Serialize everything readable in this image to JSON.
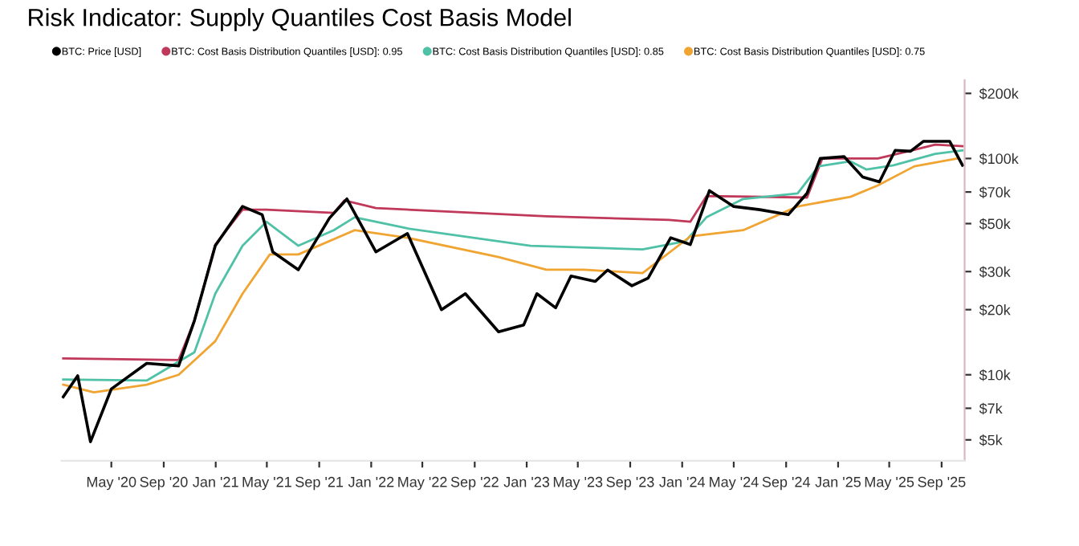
{
  "chart_data": {
    "type": "line",
    "title": "Risk Indicator: Supply Quantiles Cost Basis Model",
    "log": true,
    "legend": "top left",
    "grid": false,
    "marker": "none",
    "line_style": "solid",
    "xlim": [
      "2020-01-05",
      "2025-10-25"
    ],
    "xticks": [
      {
        "value": "2020-05-01",
        "label": "May '20"
      },
      {
        "value": "2020-09-01",
        "label": "Sep '20"
      },
      {
        "value": "2021-01-01",
        "label": "Jan '21"
      },
      {
        "value": "2021-05-01",
        "label": "May '21"
      },
      {
        "value": "2021-09-01",
        "label": "Sep '21"
      },
      {
        "value": "2022-01-01",
        "label": "Jan '22"
      },
      {
        "value": "2022-05-01",
        "label": "May '22"
      },
      {
        "value": "2022-09-01",
        "label": "Sep '22"
      },
      {
        "value": "2023-01-01",
        "label": "Jan '23"
      },
      {
        "value": "2023-05-01",
        "label": "May '23"
      },
      {
        "value": "2023-09-01",
        "label": "Sep '23"
      },
      {
        "value": "2024-01-01",
        "label": "Jan '24"
      },
      {
        "value": "2024-05-01",
        "label": "May '24"
      },
      {
        "value": "2024-09-01",
        "label": "Sep '24"
      },
      {
        "value": "2025-01-01",
        "label": "Jan '25"
      },
      {
        "value": "2025-05-01",
        "label": "May '25"
      },
      {
        "value": "2025-09-01",
        "label": "Sep '25"
      }
    ],
    "ylim": [
      4000,
      230000
    ],
    "yticks": [
      {
        "value": 5000,
        "label": "$5k"
      },
      {
        "value": 7000,
        "label": "$7k"
      },
      {
        "value": 10000,
        "label": "$10k"
      },
      {
        "value": 20000,
        "label": "$20k"
      },
      {
        "value": 30000,
        "label": "$30k"
      },
      {
        "value": 50000,
        "label": "$50k"
      },
      {
        "value": 70000,
        "label": "$70k"
      },
      {
        "value": 100000,
        "label": "$100k"
      },
      {
        "value": 200000,
        "label": "$200k"
      }
    ],
    "series": [
      {
        "name": "BTC: Cost Basis Distribution Quantiles [USD]: 0.95",
        "color": "#c0395a",
        "x": [
          "2020-01-09",
          "2020-10-06",
          "2020-11-12",
          "2020-12-31",
          "2021-03-05",
          "2021-04-30",
          "2021-10-05",
          "2021-10-30",
          "2022-01-12",
          "2023-02-16",
          "2023-12-01",
          "2024-01-20",
          "2024-02-27",
          "2024-10-20",
          "2024-11-25",
          "2025-04-04",
          "2025-06-15",
          "2025-08-17",
          "2025-10-20"
        ],
        "values": [
          11900,
          11700,
          17800,
          40000,
          58000,
          58000,
          56000,
          64000,
          59000,
          54000,
          52000,
          51000,
          67000,
          66000,
          100000,
          100000,
          108000,
          116000,
          114000
        ]
      },
      {
        "name": "BTC: Cost Basis Distribution Quantiles [USD]: 0.85",
        "color": "#4fc1a6",
        "x": [
          "2020-01-09",
          "2020-07-23",
          "2020-11-12",
          "2020-12-31",
          "2021-03-05",
          "2021-04-30",
          "2021-07-14",
          "2021-10-05",
          "2021-11-23",
          "2022-03-27",
          "2023-01-10",
          "2023-09-30",
          "2024-01-09",
          "2024-02-27",
          "2024-05-23",
          "2024-09-28",
          "2024-11-16",
          "2025-01-30",
          "2025-03-08",
          "2025-05-11",
          "2025-08-17",
          "2025-10-20"
        ],
        "values": [
          9500,
          9400,
          12700,
          23700,
          39500,
          51000,
          39500,
          46600,
          53500,
          47500,
          39500,
          38000,
          41500,
          53500,
          65000,
          69000,
          92000,
          97000,
          89000,
          93000,
          105000,
          109000
        ]
      },
      {
        "name": "BTC: Cost Basis Distribution Quantiles [USD]: 0.75",
        "color": "#f0a431",
        "x": [
          "2020-01-09",
          "2020-03-21",
          "2020-07-23",
          "2020-10-06",
          "2020-12-31",
          "2021-03-05",
          "2021-05-08",
          "2021-07-14",
          "2021-11-23",
          "2022-03-27",
          "2022-10-27",
          "2023-02-16",
          "2023-05-14",
          "2023-09-30",
          "2024-01-20",
          "2024-05-23",
          "2024-09-28",
          "2025-01-30",
          "2025-04-04",
          "2025-06-29",
          "2025-10-08"
        ],
        "values": [
          9000,
          8300,
          9000,
          10000,
          14300,
          23700,
          36000,
          36000,
          46600,
          43000,
          35000,
          30600,
          30600,
          29500,
          43600,
          46600,
          60000,
          66500,
          75000,
          92000,
          100000
        ]
      },
      {
        "name": "BTC: Price [USD]",
        "color": "#000000",
        "x": [
          "2020-01-09",
          "2020-02-12",
          "2020-03-13",
          "2020-05-01",
          "2020-07-23",
          "2020-10-06",
          "2020-11-12",
          "2020-12-31",
          "2021-03-05",
          "2021-04-20",
          "2021-05-15",
          "2021-07-14",
          "2021-09-25",
          "2021-11-05",
          "2022-01-12",
          "2022-03-27",
          "2022-06-15",
          "2022-08-10",
          "2022-10-27",
          "2022-12-25",
          "2023-01-25",
          "2023-03-10",
          "2023-04-15",
          "2023-06-11",
          "2023-07-10",
          "2023-09-05",
          "2023-10-13",
          "2023-12-05",
          "2024-01-20",
          "2024-03-05",
          "2024-05-01",
          "2024-07-01",
          "2024-09-06",
          "2024-10-20",
          "2024-11-20",
          "2025-01-15",
          "2025-02-28",
          "2025-04-08",
          "2025-05-15",
          "2025-06-20",
          "2025-07-20",
          "2025-09-20",
          "2025-10-20"
        ],
        "values": [
          7900,
          9900,
          4900,
          8600,
          11300,
          11000,
          17800,
          39500,
          60000,
          55000,
          37000,
          30600,
          53000,
          65000,
          37000,
          45000,
          20000,
          23700,
          15800,
          17000,
          23700,
          20400,
          28600,
          27000,
          30500,
          25800,
          28000,
          43000,
          40000,
          71000,
          60000,
          58000,
          55000,
          69000,
          100000,
          102000,
          82000,
          78000,
          109000,
          108000,
          120000,
          120000,
          93000
        ]
      }
    ]
  }
}
